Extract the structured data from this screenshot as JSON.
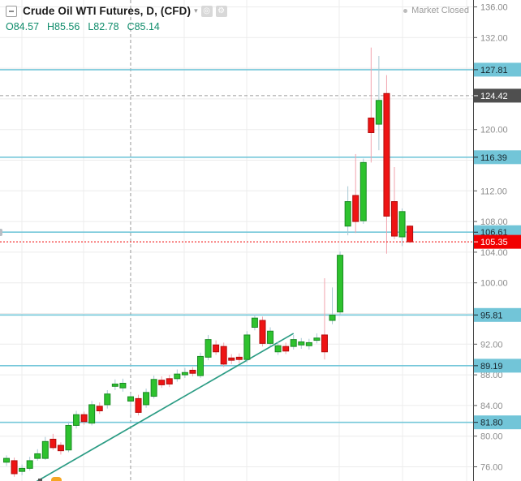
{
  "header": {
    "title": "Crude Oil WTI Futures, D, (CFD)",
    "ohlc": {
      "o_label": "O",
      "o": "84.57",
      "h_label": "H",
      "h": "85.56",
      "l_label": "L",
      "l": "82.78",
      "c_label": "C",
      "c": "85.14"
    },
    "market_status": "Market Closed"
  },
  "colors": {
    "up_fill": "#2ec22e",
    "up_stroke": "#1a8a24",
    "up_wick": "#a8c8d4",
    "down_fill": "#ee1414",
    "down_stroke": "#b00b0b",
    "down_wick": "#f2a3ad",
    "level_line": "#74c7d9",
    "trend_line": "#2b9c84",
    "grid": "#ececec",
    "crosshair": "#9a9a9a",
    "last_price_line": "#f10000",
    "badge_level_bg": "#72c5d8",
    "badge_level_text": "#17242b",
    "badge_crosshair_bg": "#4f4f4f",
    "badge_crosshair_text": "#ffffff",
    "badge_last_bg": "#f10000",
    "badge_last_text": "#ffffff",
    "axis_text": "#8c8c8c",
    "axis_line": "#444444"
  },
  "chart_data": {
    "type": "candlestick",
    "title": "Crude Oil WTI Futures, D, (CFD)",
    "interval": "D",
    "price_axis": {
      "visible_min": 74.5,
      "visible_max": 136.9,
      "grid_step": 4,
      "gridline_prices": [
        136,
        132,
        128,
        124,
        120,
        116,
        112,
        108,
        104,
        100,
        96,
        92,
        88,
        84,
        80,
        76
      ],
      "ticks": [
        {
          "price": 136.0,
          "label": "136.00"
        },
        {
          "price": 132.0,
          "label": "132.00"
        },
        {
          "price": 120.0,
          "label": "120.00"
        },
        {
          "price": 112.0,
          "label": "112.00"
        },
        {
          "price": 108.0,
          "label": "108.00"
        },
        {
          "price": 104.0,
          "label": "104.00"
        },
        {
          "price": 100.0,
          "label": "100.00"
        },
        {
          "price": 92.0,
          "label": "92.00"
        },
        {
          "price": 88.0,
          "label": "88.00"
        },
        {
          "price": 84.0,
          "label": "84.00"
        },
        {
          "price": 80.0,
          "label": "80.00"
        },
        {
          "price": 76.0,
          "label": "76.00"
        }
      ]
    },
    "levels": [
      {
        "price": 127.81,
        "label": "127.81"
      },
      {
        "price": 116.39,
        "label": "116.39"
      },
      {
        "price": 106.61,
        "label": "106.61"
      },
      {
        "price": 95.81,
        "label": "95.81"
      },
      {
        "price": 89.19,
        "label": "89.19"
      },
      {
        "price": 81.8,
        "label": "81.80"
      }
    ],
    "crosshair": {
      "price": 124.42,
      "label": "124.42",
      "x_index": 16
    },
    "last_price": {
      "price": 105.35,
      "label": "105.35"
    },
    "trendline": {
      "start": {
        "index": 3.9,
        "price": 74.1
      },
      "end": {
        "index": 37.0,
        "price": 93.4
      }
    },
    "time_gridlines_x": [
      27,
      103,
      227,
      304,
      418,
      496,
      575
    ],
    "candles": [
      [
        76.6,
        77.5,
        76.1,
        77.1
      ],
      [
        76.8,
        77.2,
        74.7,
        75.1
      ],
      [
        75.4,
        76.3,
        74.9,
        75.8
      ],
      [
        75.8,
        77.3,
        75.5,
        76.8
      ],
      [
        77.1,
        78.3,
        76.8,
        77.7
      ],
      [
        77.1,
        79.9,
        76.9,
        79.3
      ],
      [
        79.6,
        80.3,
        78.2,
        78.5
      ],
      [
        78.8,
        79.2,
        77.6,
        78.1
      ],
      [
        78.2,
        81.9,
        77.9,
        81.4
      ],
      [
        81.4,
        83.3,
        81.0,
        82.8
      ],
      [
        82.8,
        83.2,
        81.5,
        81.9
      ],
      [
        81.7,
        84.6,
        81.4,
        84.1
      ],
      [
        83.9,
        84.4,
        82.9,
        83.3
      ],
      [
        84.1,
        86.0,
        83.6,
        85.5
      ],
      [
        86.5,
        87.4,
        86.0,
        86.8
      ],
      [
        86.3,
        87.5,
        85.8,
        86.9
      ],
      [
        84.57,
        85.56,
        82.78,
        85.14
      ],
      [
        84.9,
        85.4,
        82.7,
        83.1
      ],
      [
        84.1,
        86.2,
        83.7,
        85.7
      ],
      [
        85.2,
        87.9,
        84.9,
        87.4
      ],
      [
        87.3,
        87.8,
        86.3,
        86.7
      ],
      [
        87.5,
        88.0,
        86.4,
        86.8
      ],
      [
        87.5,
        88.7,
        87.1,
        88.1
      ],
      [
        88.0,
        88.9,
        87.6,
        88.3
      ],
      [
        88.6,
        89.0,
        87.8,
        88.2
      ],
      [
        87.9,
        90.9,
        87.6,
        90.4
      ],
      [
        90.3,
        93.2,
        89.9,
        92.6
      ],
      [
        91.9,
        92.5,
        90.6,
        91.0
      ],
      [
        91.7,
        92.2,
        89.0,
        89.4
      ],
      [
        90.2,
        90.7,
        89.4,
        89.9
      ],
      [
        90.3,
        90.8,
        89.5,
        90.0
      ],
      [
        90.0,
        93.7,
        89.6,
        93.2
      ],
      [
        94.2,
        95.9,
        93.8,
        95.4
      ],
      [
        95.1,
        95.6,
        91.7,
        92.1
      ],
      [
        92.1,
        94.2,
        91.8,
        93.7
      ],
      [
        91.0,
        92.3,
        90.6,
        91.8
      ],
      [
        91.7,
        92.2,
        90.7,
        91.1
      ],
      [
        91.7,
        93.2,
        91.3,
        92.6
      ],
      [
        91.9,
        92.8,
        91.4,
        92.3
      ],
      [
        91.8,
        92.7,
        91.3,
        92.2
      ],
      [
        92.5,
        93.4,
        92.1,
        92.8
      ],
      [
        93.2,
        100.6,
        90.0,
        91.0
      ],
      [
        95.1,
        99.4,
        94.6,
        95.8
      ],
      [
        96.2,
        104.1,
        95.7,
        103.6
      ],
      [
        107.4,
        112.6,
        106.2,
        110.6
      ],
      [
        111.4,
        116.8,
        106.5,
        108.0
      ],
      [
        108.1,
        116.2,
        107.7,
        115.7
      ],
      [
        121.5,
        130.7,
        115.7,
        119.6
      ],
      [
        120.7,
        129.6,
        117.3,
        123.8
      ],
      [
        124.7,
        127.1,
        103.8,
        108.7
      ],
      [
        110.6,
        115.1,
        105.7,
        106.1
      ],
      [
        106.0,
        109.7,
        104.8,
        109.3
      ],
      [
        107.4,
        107.5,
        105.2,
        105.35
      ]
    ]
  }
}
